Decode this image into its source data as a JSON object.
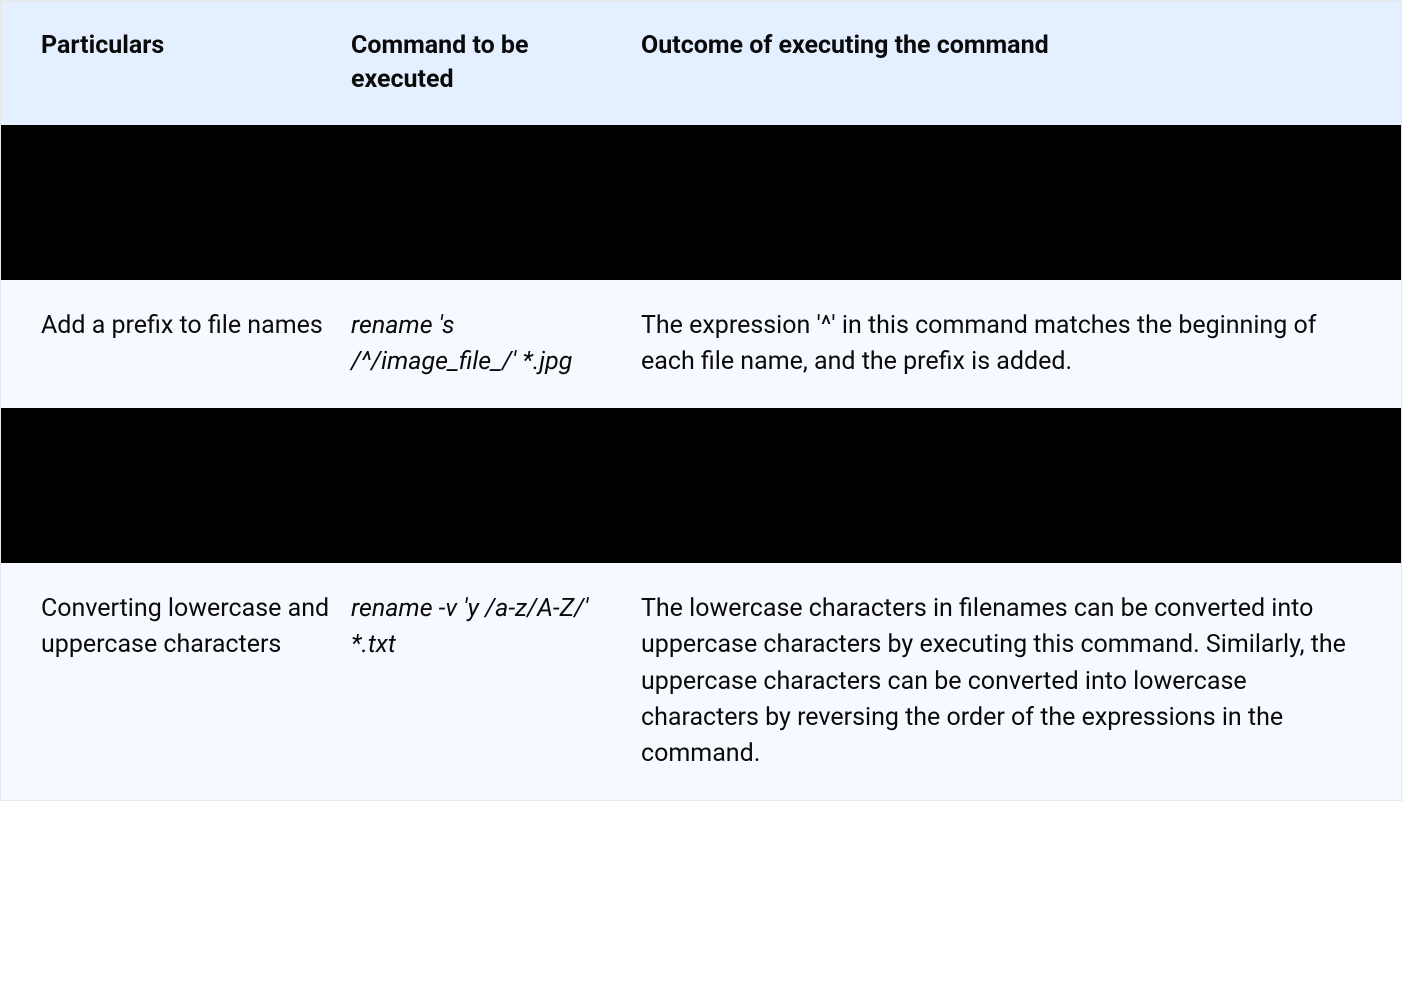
{
  "table": {
    "header_bg": "#e4efff",
    "row_bg": "#f6f9ff",
    "black_row_bg": "#000000",
    "text_color": "#0a0a0a",
    "columns": {
      "particulars": "Particulars",
      "command": "Command to be executed",
      "outcome": "Outcome of executing the command"
    },
    "rows": [
      {
        "particulars": "Add a prefix to file names",
        "command": "rename 's /^/image_file_/' *.jpg",
        "outcome": "The expression '^' in this command matches the beginning of each file name, and the prefix is added."
      },
      {
        "particulars": "Converting lowercase and uppercase characters",
        "command": "rename -v 'y /a-z/A-Z/' *.txt",
        "outcome": "The lowercase characters in filenames can be converted into uppercase characters by executing this command. Similarly, the uppercase characters can be converted into lowercase characters by reversing the order of the expressions in the command."
      }
    ]
  }
}
